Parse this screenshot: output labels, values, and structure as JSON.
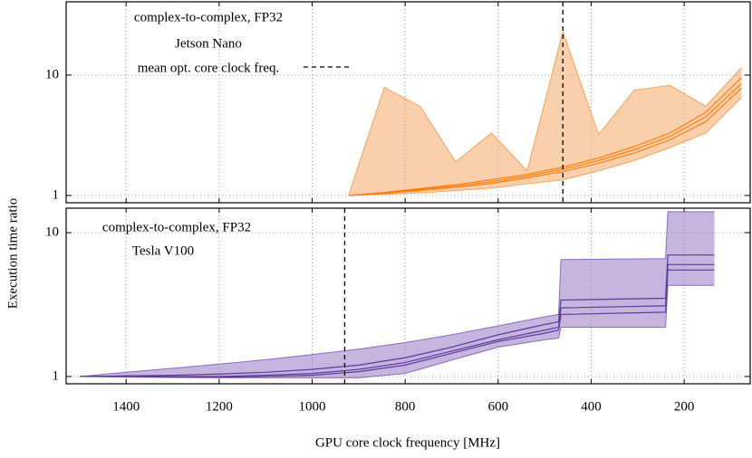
{
  "chart_data": [
    {
      "type": "band-lines",
      "ylabel": "Execution time ratio",
      "texts": [
        "complex-to-complex, FP32",
        "Jetson Nano"
      ],
      "marker_label": "mean opt. core clock freq.",
      "marker_x": 460.8,
      "x": [
        921.6,
        844.8,
        768,
        691.2,
        614.4,
        537.6,
        460.8,
        384,
        307.2,
        230.4,
        153.6,
        76.8
      ],
      "band": {
        "color": "#f6a25a",
        "upper": [
          1.0,
          7.9,
          5.5,
          1.9,
          3.3,
          1.6,
          23,
          3.2,
          7.5,
          8.2,
          5.5,
          11.5
        ],
        "lower": [
          1.0,
          1.02,
          1.05,
          1.1,
          1.15,
          1.25,
          1.35,
          1.6,
          1.95,
          2.5,
          3.3,
          6.5
        ]
      },
      "series": [
        {
          "color": "#ff7f0e",
          "values": [
            1.0,
            1.05,
            1.12,
            1.2,
            1.3,
            1.45,
            1.65,
            1.95,
            2.4,
            3.1,
            4.5,
            8.5
          ]
        },
        {
          "color": "#ff7f0e",
          "values": [
            1.0,
            1.04,
            1.1,
            1.17,
            1.26,
            1.4,
            1.58,
            1.85,
            2.25,
            2.9,
            4.1,
            7.8
          ]
        },
        {
          "color": "#ff7f0e",
          "values": [
            1.0,
            1.06,
            1.14,
            1.23,
            1.35,
            1.5,
            1.72,
            2.05,
            2.55,
            3.3,
            4.9,
            9.5
          ]
        }
      ],
      "xlim": [
        1529,
        58
      ],
      "xticks": [
        1400,
        1200,
        1000,
        800,
        600,
        400,
        200
      ],
      "ylim": [
        0.87,
        40.6
      ],
      "yticks": [
        1,
        10
      ],
      "log_y": true,
      "grid": true
    },
    {
      "type": "band-lines",
      "xlabel": "GPU core clock frequency [MHz]",
      "texts": [
        "complex-to-complex, FP32",
        "Tesla V100"
      ],
      "marker_x": 930,
      "x": [
        1500,
        1400,
        1300,
        1200,
        1100,
        1000,
        900,
        800,
        700,
        600,
        500,
        470,
        465,
        240,
        235,
        135
      ],
      "band": {
        "color": "#8c6bc0",
        "upper": [
          1.0,
          1.07,
          1.14,
          1.22,
          1.31,
          1.42,
          1.55,
          1.72,
          1.95,
          2.25,
          2.6,
          2.7,
          6.5,
          6.6,
          14,
          14
        ],
        "lower": [
          1.0,
          0.99,
          0.985,
          0.98,
          0.98,
          0.98,
          0.98,
          1.05,
          1.3,
          1.6,
          1.8,
          1.85,
          2.2,
          2.2,
          4.3,
          4.3
        ]
      },
      "series": [
        {
          "color": "#5e3c99",
          "values": [
            1.0,
            1.0,
            1.0,
            1.0,
            1.02,
            1.05,
            1.12,
            1.25,
            1.5,
            1.8,
            2.1,
            2.2,
            3.0,
            3.1,
            6.0,
            6.0
          ]
        },
        {
          "color": "#5e3c99",
          "values": [
            1.0,
            1.0,
            0.99,
            0.99,
            1.0,
            1.02,
            1.08,
            1.2,
            1.45,
            1.75,
            2.0,
            2.1,
            2.7,
            2.8,
            5.5,
            5.5
          ]
        },
        {
          "color": "#5e3c99",
          "values": [
            1.0,
            1.01,
            1.02,
            1.04,
            1.07,
            1.12,
            1.2,
            1.35,
            1.6,
            1.95,
            2.3,
            2.4,
            3.4,
            3.5,
            7.0,
            7.0
          ]
        }
      ],
      "xlim": [
        1529,
        58
      ],
      "xticks": [
        1400,
        1200,
        1000,
        800,
        600,
        400,
        200
      ],
      "ylim": [
        0.89,
        14.8
      ],
      "yticks": [
        1,
        10
      ],
      "log_y": true,
      "grid": true
    }
  ]
}
